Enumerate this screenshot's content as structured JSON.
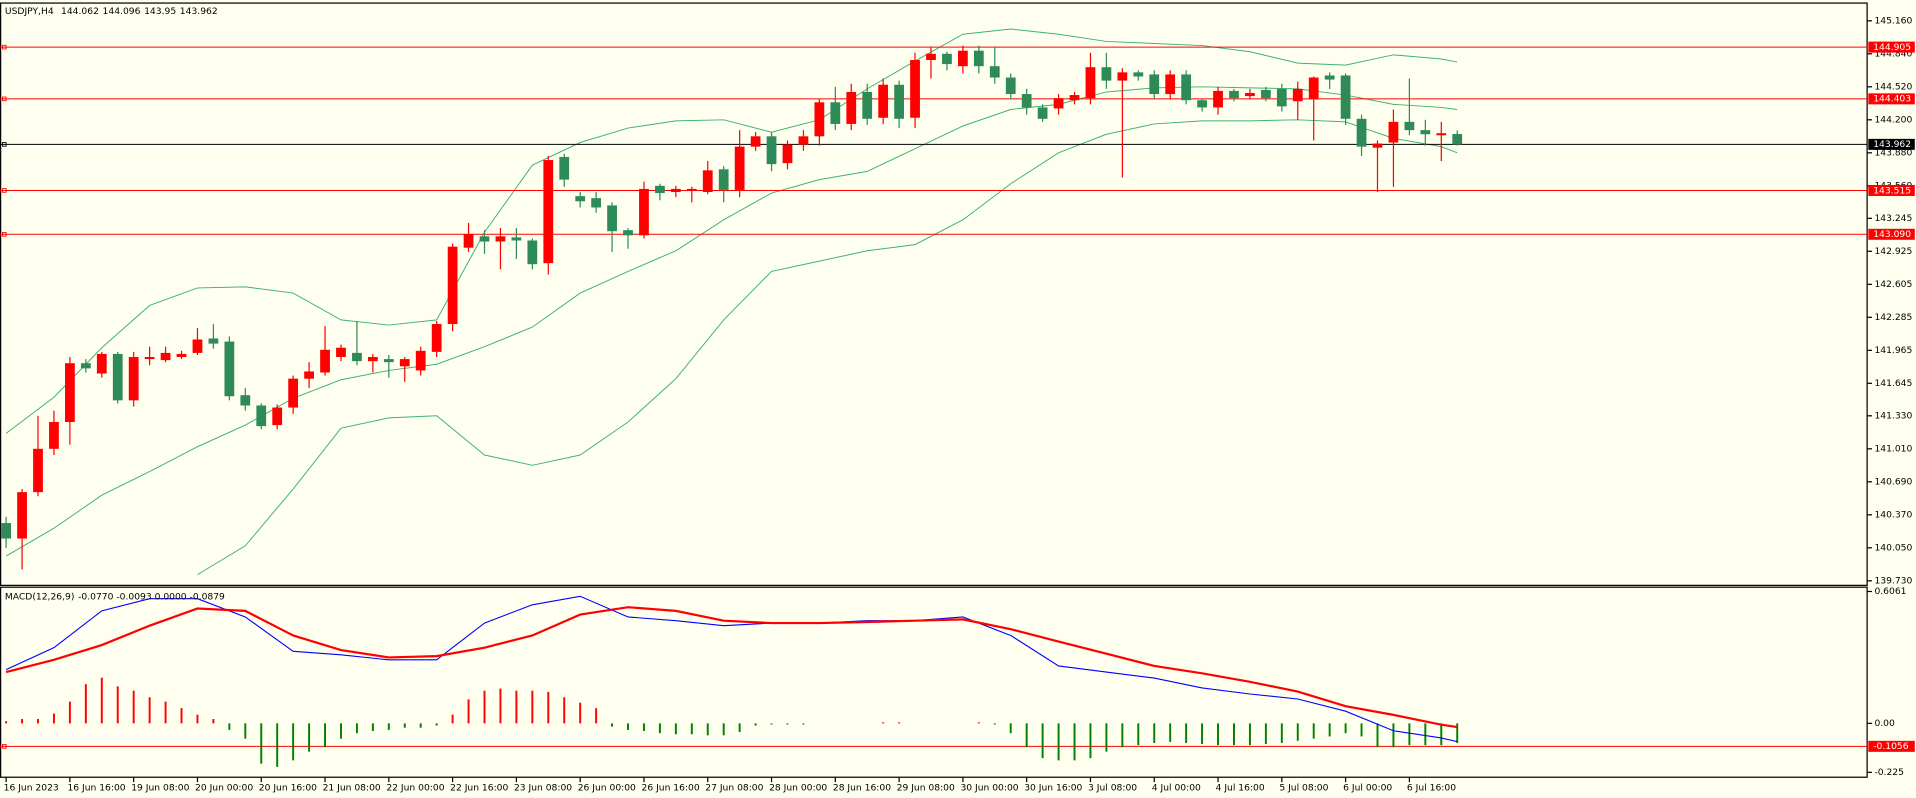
{
  "chart_data": {
    "type": "candlestick",
    "title": "USDJPY,H4",
    "categories": [
      "16 Jun 2023",
      null,
      null,
      null,
      "16 Jun 16:00",
      null,
      null,
      null,
      "19 Jun 08:00",
      null,
      null,
      null,
      "20 Jun 00:00",
      null,
      null,
      null,
      "20 Jun 16:00",
      null,
      null,
      null,
      "21 Jun 08:00",
      null,
      null,
      null,
      "22 Jun 00:00",
      null,
      null,
      null,
      "22 Jun 16:00",
      null,
      null,
      null,
      "23 Jun 08:00",
      null,
      null,
      null,
      "26 Jun 00:00",
      null,
      null,
      null,
      "26 Jun 16:00",
      null,
      null,
      null,
      "27 Jun 08:00",
      null,
      null,
      null,
      "28 Jun 00:00",
      null,
      null,
      null,
      "28 Jun 16:00",
      null,
      null,
      null,
      "29 Jun 08:00",
      null,
      null,
      null,
      "30 Jun 00:00",
      null,
      null,
      null,
      "30 Jun 16:00",
      null,
      null,
      null,
      "3 Jul 08:00",
      null,
      null,
      null,
      "4 Jul 00:00",
      null,
      null,
      null,
      "4 Jul 16:00",
      null,
      null,
      null,
      "5 Jul 08:00",
      null,
      null,
      null,
      "6 Jul 00:00",
      null,
      null,
      null,
      "6 Jul 16:00",
      null,
      null,
      null
    ],
    "open": [
      140.29,
      140.14,
      140.59,
      141.01,
      141.27,
      141.84,
      141.74,
      141.93,
      141.48,
      141.88,
      141.87,
      141.9,
      141.94,
      142.08,
      142.05,
      141.53,
      141.43,
      141.24,
      141.41,
      141.69,
      141.75,
      141.9,
      141.94,
      141.86,
      141.88,
      141.81,
      141.77,
      141.95,
      142.22,
      142.96,
      143.07,
      143.02,
      143.06,
      143.03,
      142.81,
      143.84,
      143.46,
      143.44,
      143.37,
      143.13,
      143.08,
      143.56,
      143.5,
      143.51,
      143.5,
      143.72,
      143.52,
      143.94,
      144.04,
      143.78,
      143.96,
      144.04,
      144.37,
      144.16,
      144.47,
      144.22,
      144.54,
      144.22,
      144.78,
      144.84,
      144.72,
      144.87,
      144.72,
      144.61,
      144.45,
      144.32,
      144.31,
      144.39,
      144.41,
      144.71,
      144.58,
      144.66,
      144.64,
      144.45,
      144.64,
      144.39,
      144.32,
      144.48,
      144.43,
      144.49,
      144.5,
      144.38,
      144.4,
      144.63,
      144.63,
      144.21,
      143.93,
      143.98,
      144.18,
      144.1,
      144.05,
      144.062
    ],
    "high": [
      140.35,
      140.62,
      141.33,
      141.38,
      141.9,
      141.88,
      141.95,
      141.95,
      141.95,
      142.0,
      142.0,
      141.96,
      142.18,
      142.22,
      142.1,
      141.6,
      141.45,
      141.44,
      141.72,
      141.85,
      142.2,
      142.02,
      142.25,
      141.93,
      141.92,
      141.9,
      142.0,
      142.25,
      143.0,
      143.2,
      143.13,
      143.15,
      143.15,
      143.05,
      143.85,
      143.87,
      143.5,
      143.5,
      143.4,
      143.15,
      143.6,
      143.58,
      143.56,
      143.55,
      143.8,
      143.75,
      144.1,
      144.08,
      144.08,
      144.0,
      144.1,
      144.4,
      144.52,
      144.55,
      144.55,
      144.6,
      144.58,
      144.85,
      144.9,
      144.86,
      144.92,
      144.92,
      144.9,
      144.65,
      144.5,
      144.35,
      144.45,
      144.47,
      144.85,
      144.85,
      144.7,
      144.68,
      144.68,
      144.68,
      144.68,
      144.4,
      144.52,
      144.5,
      144.5,
      144.52,
      144.55,
      144.57,
      144.62,
      144.66,
      144.65,
      144.25,
      144.0,
      144.3,
      144.6,
      144.2,
      144.18,
      144.096
    ],
    "low": [
      140.05,
      139.84,
      140.55,
      140.95,
      141.05,
      141.75,
      141.7,
      141.45,
      141.42,
      141.82,
      141.85,
      141.88,
      141.92,
      141.98,
      141.48,
      141.38,
      141.2,
      141.2,
      141.35,
      141.6,
      141.72,
      141.86,
      141.82,
      141.75,
      141.7,
      141.66,
      141.72,
      141.9,
      142.15,
      142.92,
      142.9,
      142.75,
      142.85,
      142.75,
      142.7,
      143.55,
      143.35,
      143.3,
      142.92,
      142.95,
      143.05,
      143.42,
      143.45,
      143.4,
      143.48,
      143.4,
      143.45,
      143.9,
      143.7,
      143.72,
      143.9,
      143.95,
      144.1,
      144.1,
      144.15,
      144.16,
      144.12,
      144.12,
      144.6,
      144.68,
      144.65,
      144.65,
      144.55,
      144.4,
      144.25,
      144.18,
      144.25,
      144.35,
      144.35,
      144.5,
      143.64,
      144.58,
      144.4,
      144.4,
      144.35,
      144.28,
      144.25,
      144.38,
      144.4,
      144.38,
      144.28,
      144.2,
      144.0,
      144.5,
      144.15,
      143.85,
      143.5,
      143.55,
      144.05,
      143.95,
      143.8,
      143.95
    ],
    "close": [
      140.14,
      140.59,
      141.01,
      141.27,
      141.84,
      141.79,
      141.93,
      141.48,
      141.9,
      141.9,
      141.94,
      141.93,
      142.07,
      142.03,
      141.52,
      141.43,
      141.23,
      141.41,
      141.69,
      141.76,
      141.97,
      141.99,
      141.86,
      141.9,
      141.85,
      141.88,
      141.96,
      142.22,
      142.97,
      143.09,
      143.02,
      143.07,
      143.03,
      142.8,
      143.81,
      143.62,
      143.41,
      143.35,
      143.12,
      143.08,
      143.53,
      143.49,
      143.53,
      143.53,
      143.71,
      143.52,
      143.94,
      144.04,
      143.77,
      143.96,
      144.04,
      144.37,
      144.16,
      144.47,
      144.21,
      144.54,
      144.21,
      144.78,
      144.84,
      144.74,
      144.87,
      144.72,
      144.61,
      144.45,
      144.32,
      144.21,
      144.41,
      144.44,
      144.71,
      144.58,
      144.66,
      144.62,
      144.45,
      144.64,
      144.39,
      144.32,
      144.48,
      144.41,
      144.46,
      144.41,
      144.33,
      144.5,
      144.61,
      144.59,
      144.21,
      143.94,
      143.97,
      144.18,
      144.1,
      144.06,
      144.07,
      143.962
    ],
    "up_color": "#ff0000",
    "down_color": "#2e8b57",
    "ylim": [
      139.686,
      145.338
    ],
    "yticks": [
      {
        "value": 145.16,
        "label": "145.160"
      },
      {
        "value": 144.84,
        "label": "144.840"
      },
      {
        "value": 144.52,
        "label": "144.520"
      },
      {
        "value": 144.2,
        "label": "144.200"
      },
      {
        "value": 143.88,
        "label": "143.880"
      },
      {
        "value": 143.56,
        "label": "143.560"
      },
      143.245,
      142.925,
      142.605,
      142.285,
      141.965,
      141.645,
      {
        "value": 141.33,
        "label": "141.330"
      },
      {
        "value": 141.01,
        "label": "141.010"
      },
      {
        "value": 140.69,
        "label": "140.690"
      },
      {
        "value": 140.37,
        "label": "140.370"
      },
      {
        "value": 140.05,
        "label": "140.050"
      },
      {
        "value": 139.73,
        "label": "139.730"
      }
    ],
    "levels": [
      144.905,
      144.403,
      143.515,
      {
        "value": 143.09,
        "label": "143.090"
      }
    ],
    "level_color": "#ff0000",
    "price_line_color": "#000000",
    "line_x": [
      0,
      3,
      6,
      9,
      12,
      15,
      18,
      21,
      24,
      27,
      30,
      33,
      36,
      39,
      42,
      45,
      48,
      51,
      54,
      57,
      60,
      63,
      66,
      69,
      72,
      75,
      78,
      81,
      84,
      87,
      90,
      91
    ],
    "band_color": "#3cb371",
    "upper_band": [
      141.16,
      141.51,
      141.99,
      142.4,
      142.57,
      142.58,
      142.52,
      142.26,
      142.21,
      142.26,
      143.11,
      143.76,
      143.98,
      144.12,
      144.19,
      144.2,
      144.08,
      144.2,
      144.5,
      144.77,
      145.03,
      145.08,
      145.03,
      144.96,
      144.94,
      144.92,
      144.86,
      144.75,
      144.73,
      144.83,
      144.79,
      144.76
    ],
    "middle_band": [
      139.97,
      140.24,
      140.56,
      140.79,
      141.03,
      141.24,
      141.5,
      141.68,
      141.77,
      141.83,
      142.0,
      142.19,
      142.52,
      142.73,
      142.93,
      143.23,
      143.49,
      143.62,
      143.7,
      143.92,
      144.14,
      144.3,
      144.35,
      144.47,
      144.51,
      144.52,
      144.51,
      144.5,
      144.44,
      144.35,
      144.32,
      144.3
    ],
    "lower_band": [
      null,
      null,
      null,
      null,
      139.79,
      140.07,
      140.62,
      141.21,
      141.31,
      141.33,
      140.95,
      140.85,
      140.95,
      141.27,
      141.69,
      142.26,
      142.73,
      142.83,
      142.93,
      142.99,
      143.23,
      143.58,
      143.88,
      144.06,
      144.16,
      144.19,
      144.19,
      144.2,
      144.18,
      144.02,
      143.94,
      143.88
    ],
    "macd": {
      "title": "MACD(12,26,9)",
      "readout": "-0.0770 -0.0093 0.0000 -0.0879",
      "ylim": [
        -0.2475,
        0.623
      ],
      "yticks": [
        0.6061,
        {
          "value": 0,
          "label": "0.00"
        },
        -0.225
      ],
      "level": -0.1056,
      "level_color": "#ff0000",
      "hist_pos_color": "#ff0000",
      "hist_neg_color": "#008000",
      "histogram": [
        0.01,
        0.02,
        0.02,
        0.045,
        0.1,
        0.18,
        0.21,
        0.17,
        0.15,
        0.12,
        0.1,
        0.07,
        0.04,
        0.02,
        -0.03,
        -0.07,
        -0.185,
        -0.2,
        -0.17,
        -0.13,
        -0.11,
        -0.07,
        -0.045,
        -0.035,
        -0.03,
        -0.02,
        -0.02,
        -0.01,
        0.04,
        0.11,
        0.15,
        0.16,
        0.15,
        0.15,
        0.145,
        0.12,
        0.095,
        0.07,
        -0.015,
        -0.03,
        -0.035,
        -0.045,
        -0.05,
        -0.05,
        -0.055,
        -0.055,
        -0.04,
        -0.01,
        -0.005,
        -0.005,
        -0.005,
        0,
        0,
        0,
        0,
        0.005,
        0.005,
        0,
        0,
        0,
        0,
        0.005,
        -0.005,
        -0.045,
        -0.11,
        -0.16,
        -0.17,
        -0.17,
        -0.16,
        -0.13,
        -0.11,
        -0.1,
        -0.09,
        -0.085,
        -0.09,
        -0.095,
        -0.1,
        -0.1,
        -0.1,
        -0.095,
        -0.09,
        -0.08,
        -0.07,
        -0.06,
        -0.045,
        -0.06,
        -0.11,
        -0.11,
        -0.1,
        -0.1,
        -0.1,
        -0.09
      ],
      "main_color": "#0000ff",
      "main": [
        0.247,
        0.348,
        0.517,
        0.573,
        0.573,
        0.489,
        0.331,
        0.315,
        0.292,
        0.292,
        0.461,
        0.545,
        0.584,
        0.489,
        0.472,
        0.449,
        0.461,
        0.461,
        0.472,
        0.472,
        0.489,
        0.404,
        0.264,
        0.236,
        0.208,
        0.163,
        0.135,
        0.112,
        0.056,
        -0.034,
        -0.067,
        -0.084
      ],
      "signal_color": "#ff0000",
      "signal": [
        0.236,
        0.292,
        0.36,
        0.449,
        0.528,
        0.517,
        0.404,
        0.337,
        0.303,
        0.309,
        0.348,
        0.404,
        0.5,
        0.534,
        0.517,
        0.472,
        0.461,
        0.461,
        0.466,
        0.472,
        0.478,
        0.433,
        0.376,
        0.32,
        0.264,
        0.23,
        0.191,
        0.146,
        0.079,
        0.039,
        -0.006,
        -0.017
      ]
    }
  }
}
